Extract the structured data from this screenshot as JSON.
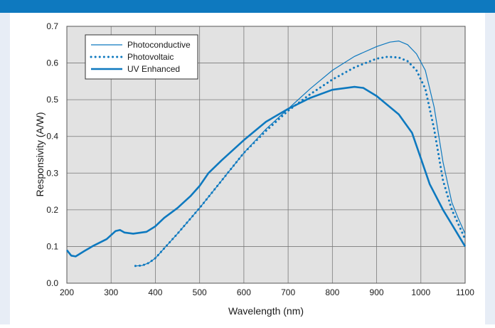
{
  "colors": {
    "header": "#0e79bf",
    "series": "#0e79bf",
    "plot_bg": "#e2e2e2",
    "grid": "#7a7a7a"
  },
  "chart_data": {
    "type": "line",
    "xlabel": "Wavelength (nm)",
    "ylabel": "Responsivity (A/W)",
    "xlim": [
      200,
      1100
    ],
    "ylim": [
      0,
      0.7
    ],
    "x_ticks": [
      200,
      300,
      400,
      500,
      600,
      700,
      800,
      900,
      1000,
      1100
    ],
    "x_tick_labels": [
      "200",
      "300",
      "400",
      "500",
      "600",
      "700",
      "800",
      "900",
      "1000",
      "1100"
    ],
    "y_ticks": [
      0,
      0.1,
      0.2,
      0.3,
      0.4,
      0.5,
      0.6,
      0.7
    ],
    "y_tick_labels": [
      "0.0",
      "0.1",
      "0.2",
      "0.3",
      "0.4",
      "0.5",
      "0.6",
      "0.7"
    ],
    "grid": true,
    "legend_position": "top-left",
    "series": [
      {
        "name": "Photoconductive",
        "style": "thin",
        "points": [
          [
            355,
            0.047
          ],
          [
            370,
            0.048
          ],
          [
            385,
            0.055
          ],
          [
            400,
            0.068
          ],
          [
            420,
            0.095
          ],
          [
            450,
            0.135
          ],
          [
            500,
            0.205
          ],
          [
            550,
            0.28
          ],
          [
            600,
            0.355
          ],
          [
            650,
            0.42
          ],
          [
            700,
            0.475
          ],
          [
            750,
            0.53
          ],
          [
            800,
            0.58
          ],
          [
            850,
            0.618
          ],
          [
            900,
            0.645
          ],
          [
            930,
            0.657
          ],
          [
            950,
            0.66
          ],
          [
            970,
            0.65
          ],
          [
            990,
            0.625
          ],
          [
            1010,
            0.58
          ],
          [
            1030,
            0.48
          ],
          [
            1050,
            0.33
          ],
          [
            1070,
            0.22
          ],
          [
            1085,
            0.175
          ],
          [
            1100,
            0.135
          ]
        ]
      },
      {
        "name": "Photovoltaic",
        "style": "dotted",
        "points": [
          [
            355,
            0.047
          ],
          [
            370,
            0.048
          ],
          [
            385,
            0.055
          ],
          [
            400,
            0.068
          ],
          [
            420,
            0.095
          ],
          [
            450,
            0.135
          ],
          [
            500,
            0.205
          ],
          [
            550,
            0.28
          ],
          [
            600,
            0.355
          ],
          [
            650,
            0.415
          ],
          [
            700,
            0.47
          ],
          [
            750,
            0.515
          ],
          [
            800,
            0.555
          ],
          [
            850,
            0.588
          ],
          [
            900,
            0.612
          ],
          [
            925,
            0.617
          ],
          [
            950,
            0.615
          ],
          [
            970,
            0.605
          ],
          [
            990,
            0.58
          ],
          [
            1010,
            0.53
          ],
          [
            1030,
            0.42
          ],
          [
            1050,
            0.28
          ],
          [
            1070,
            0.2
          ],
          [
            1085,
            0.16
          ],
          [
            1100,
            0.12
          ]
        ]
      },
      {
        "name": "UV Enhanced",
        "style": "thick",
        "points": [
          [
            200,
            0.09
          ],
          [
            210,
            0.075
          ],
          [
            220,
            0.073
          ],
          [
            240,
            0.088
          ],
          [
            260,
            0.102
          ],
          [
            290,
            0.12
          ],
          [
            310,
            0.142
          ],
          [
            320,
            0.145
          ],
          [
            330,
            0.138
          ],
          [
            350,
            0.135
          ],
          [
            380,
            0.14
          ],
          [
            400,
            0.155
          ],
          [
            420,
            0.178
          ],
          [
            450,
            0.205
          ],
          [
            480,
            0.238
          ],
          [
            500,
            0.265
          ],
          [
            520,
            0.3
          ],
          [
            550,
            0.335
          ],
          [
            600,
            0.39
          ],
          [
            650,
            0.44
          ],
          [
            700,
            0.475
          ],
          [
            750,
            0.505
          ],
          [
            800,
            0.527
          ],
          [
            850,
            0.535
          ],
          [
            870,
            0.532
          ],
          [
            900,
            0.51
          ],
          [
            950,
            0.46
          ],
          [
            980,
            0.41
          ],
          [
            1000,
            0.34
          ],
          [
            1020,
            0.27
          ],
          [
            1050,
            0.2
          ],
          [
            1080,
            0.14
          ],
          [
            1100,
            0.1
          ]
        ]
      }
    ]
  }
}
